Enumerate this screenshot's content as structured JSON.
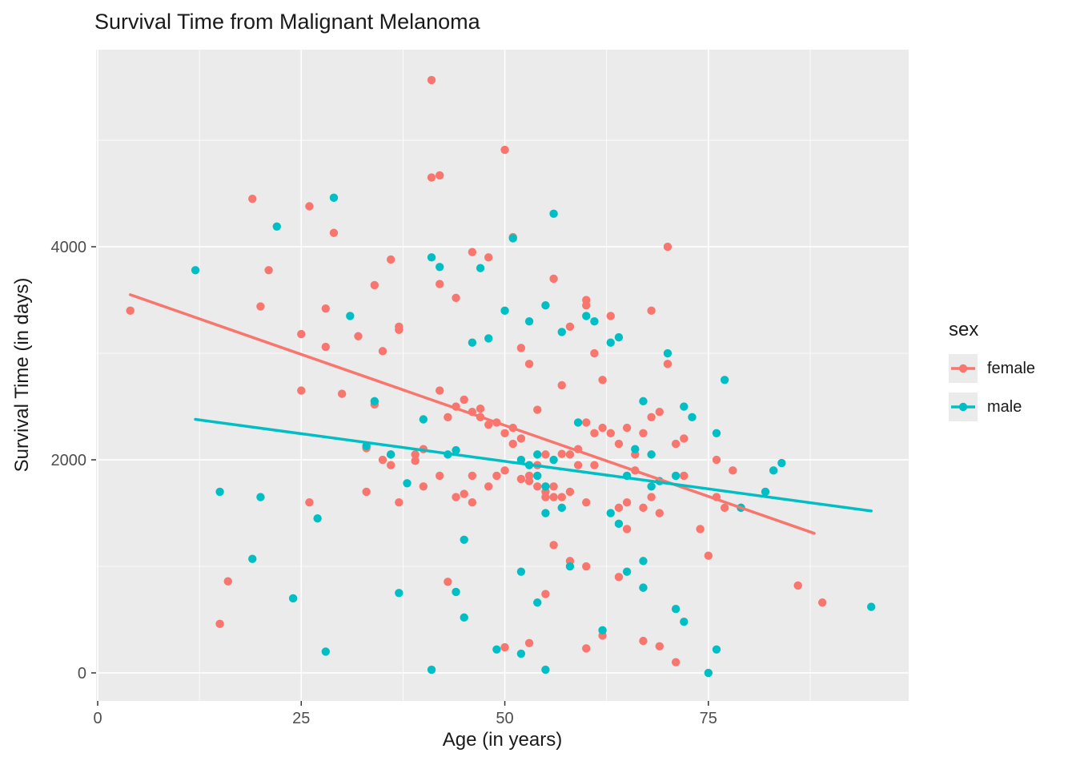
{
  "figure": {
    "title": "Survival Time from Malignant Melanoma",
    "x_axis_title": "Age (in years)",
    "y_axis_title": "Survival Time (in days)"
  },
  "legend": {
    "title": "sex",
    "items": [
      {
        "label": "female",
        "color": "#F8766D"
      },
      {
        "label": "male",
        "color": "#00BFC4"
      }
    ]
  },
  "chart_data": {
    "type": "scatter",
    "title": "Survival Time from Malignant Melanoma",
    "xlabel": "Age (in years)",
    "ylabel": "Survival Time (in days)",
    "xlim": [
      -0.2,
      99.6
    ],
    "ylim": [
      -263,
      5850
    ],
    "x_ticks": [
      0,
      25,
      50,
      75
    ],
    "y_ticks": [
      0,
      2000,
      4000
    ],
    "x_minor_ticks": [
      12.5,
      37.5,
      62.5,
      87.5
    ],
    "y_minor_ticks": [
      1000,
      3000,
      5000
    ],
    "panel_background": "#EBEBEB",
    "grid_color": "#FFFFFF",
    "tick_label_color": "#4D4D4D",
    "legend_position": "right",
    "grid": true,
    "series": [
      {
        "name": "female",
        "color": "#F8766D",
        "trend": [
          [
            4,
            3550
          ],
          [
            88,
            1310
          ]
        ],
        "points": [
          [
            4,
            3400
          ],
          [
            15,
            460
          ],
          [
            16,
            860
          ],
          [
            19,
            4450
          ],
          [
            20,
            3440
          ],
          [
            21,
            3780
          ],
          [
            25,
            2650
          ],
          [
            25,
            3180
          ],
          [
            26,
            1600
          ],
          [
            26,
            4380
          ],
          [
            28,
            3060
          ],
          [
            28,
            3420
          ],
          [
            29,
            4130
          ],
          [
            30,
            2620
          ],
          [
            32,
            3160
          ],
          [
            33,
            2110
          ],
          [
            33,
            1700
          ],
          [
            34,
            2520
          ],
          [
            34,
            3640
          ],
          [
            35,
            2000
          ],
          [
            35,
            3020
          ],
          [
            36,
            1950
          ],
          [
            36,
            2050
          ],
          [
            36,
            3880
          ],
          [
            37,
            1600
          ],
          [
            37,
            3220
          ],
          [
            37,
            3250
          ],
          [
            39,
            2050
          ],
          [
            39,
            1990
          ],
          [
            40,
            1750
          ],
          [
            40,
            2100
          ],
          [
            41,
            4650
          ],
          [
            41,
            5565
          ],
          [
            42,
            1850
          ],
          [
            42,
            2650
          ],
          [
            42,
            3650
          ],
          [
            42,
            4670
          ],
          [
            43,
            855
          ],
          [
            43,
            2400
          ],
          [
            44,
            1650
          ],
          [
            44,
            2500
          ],
          [
            44,
            3520
          ],
          [
            45,
            1680
          ],
          [
            45,
            2565
          ],
          [
            46,
            1600
          ],
          [
            46,
            1850
          ],
          [
            46,
            2450
          ],
          [
            46,
            3950
          ],
          [
            47,
            2400
          ],
          [
            47,
            2480
          ],
          [
            48,
            1750
          ],
          [
            48,
            2330
          ],
          [
            48,
            3900
          ],
          [
            49,
            1850
          ],
          [
            49,
            2350
          ],
          [
            50,
            240
          ],
          [
            50,
            1900
          ],
          [
            50,
            2250
          ],
          [
            50,
            4910
          ],
          [
            51,
            2150
          ],
          [
            51,
            2300
          ],
          [
            51,
            4090
          ],
          [
            52,
            1820
          ],
          [
            52,
            2200
          ],
          [
            52,
            3050
          ],
          [
            53,
            280
          ],
          [
            53,
            1800
          ],
          [
            53,
            1850
          ],
          [
            53,
            2900
          ],
          [
            54,
            1750
          ],
          [
            54,
            1950
          ],
          [
            54,
            2470
          ],
          [
            55,
            740
          ],
          [
            55,
            1650
          ],
          [
            55,
            1700
          ],
          [
            55,
            2050
          ],
          [
            56,
            1200
          ],
          [
            56,
            1650
          ],
          [
            56,
            1750
          ],
          [
            56,
            3700
          ],
          [
            57,
            1650
          ],
          [
            57,
            2055
          ],
          [
            57,
            2700
          ],
          [
            58,
            1050
          ],
          [
            58,
            1700
          ],
          [
            58,
            2050
          ],
          [
            58,
            3250
          ],
          [
            59,
            1950
          ],
          [
            59,
            2100
          ],
          [
            60,
            230
          ],
          [
            60,
            1000
          ],
          [
            60,
            1600
          ],
          [
            60,
            2350
          ],
          [
            60,
            3450
          ],
          [
            60,
            3500
          ],
          [
            61,
            1950
          ],
          [
            61,
            2250
          ],
          [
            61,
            3000
          ],
          [
            62,
            350
          ],
          [
            62,
            2300
          ],
          [
            62,
            2750
          ],
          [
            63,
            2250
          ],
          [
            63,
            3350
          ],
          [
            64,
            900
          ],
          [
            64,
            1550
          ],
          [
            64,
            2150
          ],
          [
            65,
            1350
          ],
          [
            65,
            1600
          ],
          [
            65,
            2300
          ],
          [
            66,
            2050
          ],
          [
            66,
            1900
          ],
          [
            67,
            300
          ],
          [
            67,
            800
          ],
          [
            67,
            1550
          ],
          [
            67,
            2250
          ],
          [
            68,
            1650
          ],
          [
            68,
            2400
          ],
          [
            68,
            3400
          ],
          [
            69,
            250
          ],
          [
            69,
            1500
          ],
          [
            69,
            2450
          ],
          [
            70,
            4000
          ],
          [
            70,
            2900
          ],
          [
            71,
            100
          ],
          [
            71,
            2150
          ],
          [
            72,
            1850
          ],
          [
            72,
            2200
          ],
          [
            74,
            1350
          ],
          [
            75,
            1100
          ],
          [
            76,
            1650
          ],
          [
            76,
            2000
          ],
          [
            77,
            1550
          ],
          [
            78,
            1900
          ],
          [
            79,
            1550
          ],
          [
            86,
            820
          ],
          [
            89,
            660
          ]
        ]
      },
      {
        "name": "male",
        "color": "#00BFC4",
        "trend": [
          [
            12,
            2380
          ],
          [
            95,
            1520
          ]
        ],
        "points": [
          [
            12,
            3780
          ],
          [
            15,
            1700
          ],
          [
            19,
            1070
          ],
          [
            20,
            1650
          ],
          [
            22,
            4190
          ],
          [
            24,
            700
          ],
          [
            27,
            1450
          ],
          [
            28,
            200
          ],
          [
            29,
            4460
          ],
          [
            31,
            3350
          ],
          [
            33,
            2130
          ],
          [
            34,
            2550
          ],
          [
            36,
            2050
          ],
          [
            37,
            750
          ],
          [
            38,
            1780
          ],
          [
            40,
            2380
          ],
          [
            41,
            30
          ],
          [
            41,
            3900
          ],
          [
            42,
            3810
          ],
          [
            43,
            2050
          ],
          [
            44,
            760
          ],
          [
            44,
            2090
          ],
          [
            45,
            520
          ],
          [
            45,
            1250
          ],
          [
            46,
            3100
          ],
          [
            47,
            3800
          ],
          [
            48,
            3140
          ],
          [
            49,
            220
          ],
          [
            50,
            3400
          ],
          [
            51,
            4080
          ],
          [
            52,
            180
          ],
          [
            52,
            950
          ],
          [
            52,
            2000
          ],
          [
            53,
            1950
          ],
          [
            53,
            3300
          ],
          [
            54,
            660
          ],
          [
            54,
            1850
          ],
          [
            54,
            2050
          ],
          [
            55,
            30
          ],
          [
            55,
            1500
          ],
          [
            55,
            1750
          ],
          [
            55,
            3450
          ],
          [
            56,
            2000
          ],
          [
            56,
            4310
          ],
          [
            57,
            1550
          ],
          [
            57,
            3200
          ],
          [
            58,
            1000
          ],
          [
            59,
            2350
          ],
          [
            60,
            3350
          ],
          [
            61,
            3300
          ],
          [
            62,
            400
          ],
          [
            63,
            1500
          ],
          [
            63,
            3100
          ],
          [
            64,
            1400
          ],
          [
            64,
            3150
          ],
          [
            65,
            950
          ],
          [
            65,
            1850
          ],
          [
            66,
            2100
          ],
          [
            67,
            1050
          ],
          [
            67,
            2550
          ],
          [
            67,
            800
          ],
          [
            68,
            2050
          ],
          [
            68,
            1750
          ],
          [
            69,
            1800
          ],
          [
            70,
            3000
          ],
          [
            71,
            600
          ],
          [
            71,
            1850
          ],
          [
            72,
            480
          ],
          [
            72,
            2500
          ],
          [
            73,
            2400
          ],
          [
            75,
            0
          ],
          [
            76,
            220
          ],
          [
            76,
            2250
          ],
          [
            77,
            2750
          ],
          [
            79,
            1550
          ],
          [
            82,
            1700
          ],
          [
            83,
            1900
          ],
          [
            84,
            1970
          ],
          [
            95,
            620
          ]
        ]
      }
    ]
  }
}
